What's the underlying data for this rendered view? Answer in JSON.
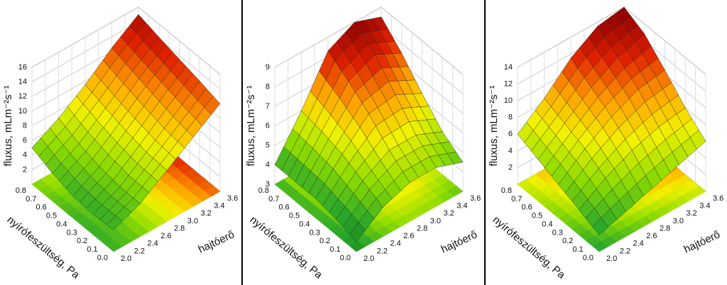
{
  "chart_data": [
    {
      "type": "surface",
      "x_label": "hajtóerő",
      "y_label": "nyírófeszültség, Pa",
      "z_label": "fluxus, mLm⁻²s⁻¹",
      "x": [
        2.0,
        2.4,
        2.8,
        3.2,
        3.6
      ],
      "y": [
        0,
        0.2,
        0.4,
        0.6,
        0.8
      ],
      "z": [
        [
          3,
          4.5,
          7,
          9.5,
          12
        ],
        [
          2.8,
          4.5,
          7.2,
          10,
          12.8
        ],
        [
          3,
          5,
          7.8,
          10.8,
          13.5
        ],
        [
          3.8,
          5.8,
          8.6,
          11.6,
          14.2
        ],
        [
          5,
          7,
          9.5,
          12.5,
          15
        ]
      ],
      "xlim": [
        2.0,
        3.6
      ],
      "ylim": [
        0,
        0.8
      ],
      "zlim": [
        0,
        16
      ],
      "xticks": [
        {
          "value": 2,
          "label": "2.0"
        },
        2.2,
        2.4,
        2.6,
        2.8,
        {
          "value": 3,
          "label": "3.0"
        },
        3.2,
        3.4,
        3.6
      ],
      "yticks": [
        {
          "value": 0,
          "label": "0.0"
        },
        0.1,
        0.2,
        0.3,
        0.4,
        0.5,
        0.6,
        0.7,
        0.8
      ],
      "zticks": [
        2,
        4,
        6,
        8,
        10,
        12,
        14,
        16
      ],
      "colors": [
        "#0f6a0f",
        "#2aa82a",
        "#8fdc00",
        "#f2f200",
        "#ffa000",
        "#e02000",
        "#8b0000"
      ]
    },
    {
      "type": "surface",
      "x_label": "hajtóerő",
      "y_label": "nyírófeszültség, Pa",
      "z_label": "fluxus, mLm⁻²s⁻¹",
      "x": [
        2.0,
        2.4,
        2.8,
        3.2,
        3.6
      ],
      "y": [
        0,
        0.2,
        0.4,
        0.6,
        0.8
      ],
      "z": [
        [
          3.5,
          4.5,
          5,
          5,
          4.5
        ],
        [
          3.8,
          5,
          5.8,
          5.8,
          5.2
        ],
        [
          4,
          5.5,
          6.8,
          7,
          6.3
        ],
        [
          4,
          5.8,
          7.6,
          8.2,
          7.5
        ],
        [
          4,
          6,
          8.3,
          9,
          8.5
        ]
      ],
      "xlim": [
        2.0,
        3.6
      ],
      "ylim": [
        0,
        0.8
      ],
      "zlim": [
        3,
        9
      ],
      "xticks": [
        {
          "value": 2,
          "label": "2.0"
        },
        2.2,
        2.4,
        2.6,
        2.8,
        {
          "value": 3,
          "label": "3.0"
        },
        3.2,
        3.4,
        3.6
      ],
      "yticks": [
        {
          "value": 0,
          "label": "0.0"
        },
        0.1,
        0.2,
        0.3,
        0.4,
        0.5,
        0.6,
        0.7,
        0.8
      ],
      "zticks": [
        3,
        4,
        5,
        6,
        7,
        8,
        9
      ],
      "colors": [
        "#0f6a0f",
        "#2aa82a",
        "#8fdc00",
        "#f2f200",
        "#ffa000",
        "#e02000",
        "#8b0000"
      ]
    },
    {
      "type": "surface",
      "x_label": "hajtóerő",
      "y_label": "nyírófeszültség, Pa",
      "z_label": "fluxus, mLm⁻²s⁻¹",
      "x": [
        2.0,
        2.4,
        2.8,
        3.2,
        3.6
      ],
      "y": [
        0,
        0.2,
        0.4,
        0.6,
        0.8
      ],
      "z": [
        [
          2,
          3,
          4,
          5,
          6
        ],
        [
          3,
          5,
          6.5,
          7.5,
          8
        ],
        [
          4,
          6.5,
          8.5,
          10,
          10.5
        ],
        [
          5,
          7.5,
          10,
          11.8,
          12.8
        ],
        [
          6,
          8.5,
          11.5,
          13.5,
          14
        ]
      ],
      "xlim": [
        2.0,
        3.6
      ],
      "ylim": [
        0,
        0.8
      ],
      "zlim": [
        0,
        14
      ],
      "xticks": [
        {
          "value": 2,
          "label": "2.0"
        },
        2.2,
        2.4,
        2.6,
        2.8,
        {
          "value": 3,
          "label": "3.0"
        },
        3.2,
        3.4,
        3.6
      ],
      "yticks": [
        {
          "value": 0,
          "label": "0.0"
        },
        0.1,
        0.2,
        0.3,
        0.4,
        0.5,
        0.6,
        0.7,
        0.8
      ],
      "zticks": [
        2,
        4,
        6,
        8,
        10,
        12,
        14
      ],
      "colors": [
        "#0f6a0f",
        "#2aa82a",
        "#8fdc00",
        "#f2f200",
        "#ffa000",
        "#e02000",
        "#8b0000"
      ]
    }
  ]
}
